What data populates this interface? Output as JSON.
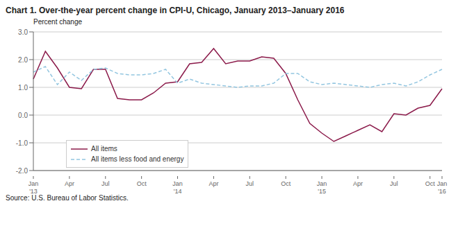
{
  "chart_data": {
    "type": "line",
    "title": "Chart 1. Over-the-year percent change in CPI-U, Chicago, January 2013–January 2016",
    "y_label": "Percent change",
    "annotations": [
      "Source: U.S. Bureau of Labor Statistics."
    ],
    "categories": [
      "Jan\n'13",
      null,
      null,
      "Apr",
      null,
      null,
      "Jul",
      null,
      null,
      "Oct",
      null,
      null,
      "Jan\n'14",
      null,
      null,
      "Apr",
      null,
      null,
      "Jul",
      null,
      null,
      "Oct",
      null,
      null,
      "Jan\n'15",
      null,
      null,
      "Apr",
      null,
      null,
      "Jul",
      null,
      null,
      "Oct",
      "Jan\n'16"
    ],
    "series": [
      {
        "name": "All items",
        "color": "#8b1a4a",
        "line_style": "solid",
        "values": [
          1.3,
          2.3,
          1.7,
          1.0,
          0.95,
          1.65,
          1.65,
          0.6,
          0.55,
          0.55,
          0.8,
          1.15,
          1.2,
          1.85,
          1.9,
          2.4,
          1.85,
          1.95,
          1.95,
          2.1,
          2.05,
          1.5,
          0.55,
          -0.3,
          -0.65,
          -0.95,
          -0.75,
          -0.55,
          -0.35,
          -0.6,
          0.05,
          0.0,
          0.25,
          0.35,
          0.95
        ]
      },
      {
        "name": "All items less food and energy",
        "color": "#93c6e0",
        "line_style": "dashed",
        "values": [
          1.55,
          1.75,
          1.1,
          1.55,
          1.25,
          1.65,
          1.7,
          1.5,
          1.45,
          1.45,
          1.5,
          1.65,
          1.15,
          1.3,
          1.15,
          1.1,
          1.05,
          1.0,
          1.05,
          1.05,
          1.15,
          1.5,
          1.5,
          1.2,
          1.1,
          1.15,
          1.1,
          1.05,
          1.0,
          1.1,
          1.15,
          1.05,
          1.2,
          1.45,
          1.65
        ]
      }
    ],
    "ylim": [
      -2.0,
      3.0
    ],
    "yticks": [
      {
        "value": -2.0,
        "label": "-2.0"
      },
      {
        "value": -1.0,
        "label": "-1.0"
      },
      {
        "value": 0.0,
        "label": "0.0"
      },
      {
        "value": 1.0,
        "label": "1.0"
      },
      {
        "value": 2.0,
        "label": "2.0"
      },
      {
        "value": 3.0,
        "label": "3.0"
      }
    ],
    "grid": true,
    "legend": "lower left"
  }
}
